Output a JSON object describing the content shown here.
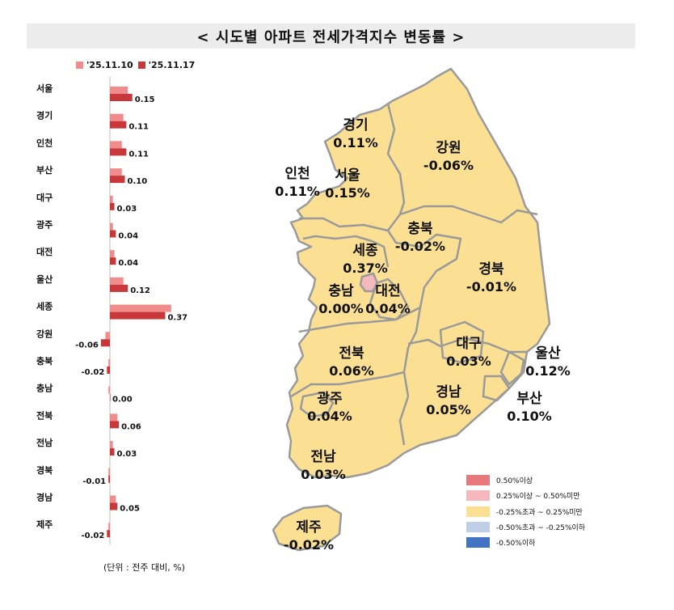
{
  "title": "< 시도별 아파트 전세가격지수 변동률 >",
  "legend": [
    {
      "label": "'25.11.10",
      "color": "#f08c8c"
    },
    {
      "label": "'25.11.17",
      "color": "#c8383b"
    }
  ],
  "unit_note": "(단위 : 전주 대비, %)",
  "chart_data": {
    "type": "bar",
    "orientation": "horizontal",
    "categories": [
      "서울",
      "경기",
      "인천",
      "부산",
      "대구",
      "광주",
      "대전",
      "울산",
      "세종",
      "강원",
      "충북",
      "충남",
      "전북",
      "전남",
      "경북",
      "경남",
      "제주"
    ],
    "series": [
      {
        "name": "'25.11.10",
        "color": "#f08c8c",
        "values": [
          0.12,
          0.09,
          0.08,
          0.08,
          0.02,
          0.02,
          0.03,
          0.09,
          0.41,
          -0.03,
          -0.01,
          -0.01,
          0.05,
          0.02,
          -0.01,
          0.04,
          -0.01
        ]
      },
      {
        "name": "'25.11.17",
        "color": "#c8383b",
        "values": [
          0.15,
          0.11,
          0.11,
          0.1,
          0.03,
          0.04,
          0.04,
          0.12,
          0.37,
          -0.06,
          -0.02,
          0.0,
          0.06,
          0.03,
          -0.01,
          0.05,
          -0.02
        ]
      }
    ],
    "value_labels": [
      "0.15",
      "0.11",
      "0.11",
      "0.10",
      "0.03",
      "0.04",
      "0.04",
      "0.12",
      "0.37",
      "-0.06",
      "-0.02",
      "0.00",
      "0.06",
      "0.03",
      "-0.01",
      "0.05",
      "-0.02"
    ]
  },
  "map": {
    "regions": [
      {
        "id": "gyeonggi",
        "name": "경기",
        "value": "0.11%"
      },
      {
        "id": "gangwon",
        "name": "강원",
        "value": "-0.06%"
      },
      {
        "id": "incheon",
        "name": "인천",
        "value": "0.11%"
      },
      {
        "id": "seoul",
        "name": "서울",
        "value": "0.15%"
      },
      {
        "id": "chungbuk",
        "name": "충북",
        "value": "-0.02%"
      },
      {
        "id": "sejong",
        "name": "세종",
        "value": "0.37%"
      },
      {
        "id": "gyeongbuk",
        "name": "경북",
        "value": "-0.01%"
      },
      {
        "id": "chungnam",
        "name": "충남",
        "value": "0.00%"
      },
      {
        "id": "daejeon",
        "name": "대전",
        "value": "0.04%"
      },
      {
        "id": "jeonbuk",
        "name": "전북",
        "value": "0.06%"
      },
      {
        "id": "daegu",
        "name": "대구",
        "value": "0.03%"
      },
      {
        "id": "ulsan",
        "name": "울산",
        "value": "0.12%"
      },
      {
        "id": "gwangju",
        "name": "광주",
        "value": "0.04%"
      },
      {
        "id": "gyeongnam",
        "name": "경남",
        "value": "0.05%"
      },
      {
        "id": "busan",
        "name": "부산",
        "value": "0.10%"
      },
      {
        "id": "jeonnam",
        "name": "전남",
        "value": "0.03%"
      },
      {
        "id": "jeju",
        "name": "제주",
        "value": "-0.02%"
      }
    ],
    "fill_colors": {
      "default": "#fbe093",
      "sejong": "#f4b8bd",
      "border": "#9a9a9a"
    },
    "legend": [
      {
        "label": "0.50%이상",
        "color": "#e8787b"
      },
      {
        "label": "0.25%이상 ~ 0.50%미만",
        "color": "#f4b8bd"
      },
      {
        "label": "-0.25%초과 ~ 0.25%미만",
        "color": "#fbe093"
      },
      {
        "label": "-0.50%초과 ~ -0.25%이하",
        "color": "#bfcfe8"
      },
      {
        "label": "-0.50%이하",
        "color": "#4472c4"
      }
    ]
  }
}
